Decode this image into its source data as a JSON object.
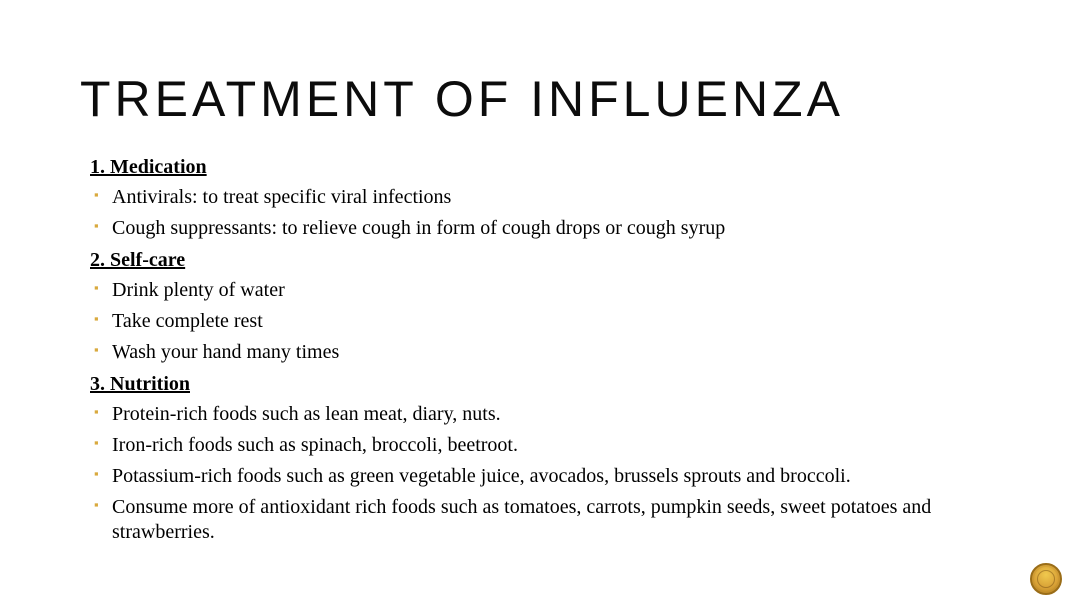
{
  "title": "TREATMENT OF INFLUENZA",
  "sections": {
    "s1": {
      "heading": "1.  Medication",
      "items": [
        "Antivirals: to treat specific viral infections",
        "Cough suppressants: to relieve cough in form of cough drops or cough syrup"
      ]
    },
    "s2": {
      "heading": "2.  Self-care",
      "items": [
        "Drink plenty of water",
        "Take complete rest",
        "Wash your hand many times"
      ]
    },
    "s3": {
      "heading": "3.  Nutrition",
      "items": [
        "Protein-rich foods such as lean meat, diary, nuts.",
        "Iron-rich foods such as spinach, broccoli, beetroot.",
        "Potassium-rich foods such as green vegetable juice, avocados, brussels sprouts and broccoli.",
        "Consume more of antioxidant rich foods such as tomatoes, carrots, pumpkin seeds, sweet potatoes  and strawberries."
      ]
    }
  },
  "style": {
    "bullet_color": "#d9a93e",
    "title_font": "Impact",
    "body_font": "Georgia",
    "title_fontsize": 50,
    "heading_fontsize": 20,
    "body_fontsize": 20,
    "background_color": "#ffffff",
    "badge_colors": [
      "#f0c94e",
      "#d9a237",
      "#b47f1e"
    ]
  }
}
